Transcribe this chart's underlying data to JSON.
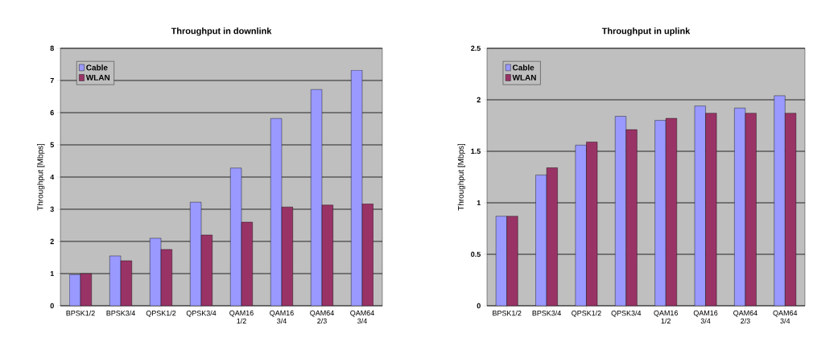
{
  "chart_data": [
    {
      "type": "bar",
      "title": "Throughput in downlink",
      "ylabel": "Throughput [Mbps]",
      "categories": [
        "BPSK1/2",
        "BPSK3/4",
        "QPSK1/2",
        "QPSK3/4",
        "QAM16 1/2",
        "QAM16 3/4",
        "QAM64 2/3",
        "QAM64 3/4"
      ],
      "series": [
        {
          "name": "Cable",
          "color": "#9999ff",
          "values": [
            0.97,
            1.55,
            2.1,
            3.22,
            4.28,
            5.82,
            6.72,
            7.32
          ]
        },
        {
          "name": "WLAN",
          "color": "#993366",
          "values": [
            1.0,
            1.4,
            1.75,
            2.2,
            2.6,
            3.07,
            3.13,
            3.17
          ]
        }
      ],
      "ylim": [
        0,
        8
      ],
      "yticks": [
        0,
        1,
        2,
        3,
        4,
        5,
        6,
        7,
        8
      ],
      "grid": "y",
      "legend": "top left"
    },
    {
      "type": "bar",
      "title": "Throughput in uplink",
      "ylabel": "Throughput [Mbps]",
      "categories": [
        "BPSK1/2",
        "BPSK3/4",
        "QPSK1/2",
        "QPSK3/4",
        "QAM16 1/2",
        "QAM16 3/4",
        "QAM64 2/3",
        "QAM64 3/4"
      ],
      "series": [
        {
          "name": "Cable",
          "color": "#9999ff",
          "values": [
            0.87,
            1.27,
            1.56,
            1.84,
            1.8,
            1.94,
            1.92,
            2.04
          ]
        },
        {
          "name": "WLAN",
          "color": "#993366",
          "values": [
            0.87,
            1.34,
            1.59,
            1.71,
            1.82,
            1.87,
            1.87,
            1.87
          ]
        }
      ],
      "ylim": [
        0,
        2.5
      ],
      "yticks": [
        0,
        0.5,
        1,
        1.5,
        2,
        2.5
      ],
      "grid": "y",
      "legend": "top left"
    }
  ]
}
